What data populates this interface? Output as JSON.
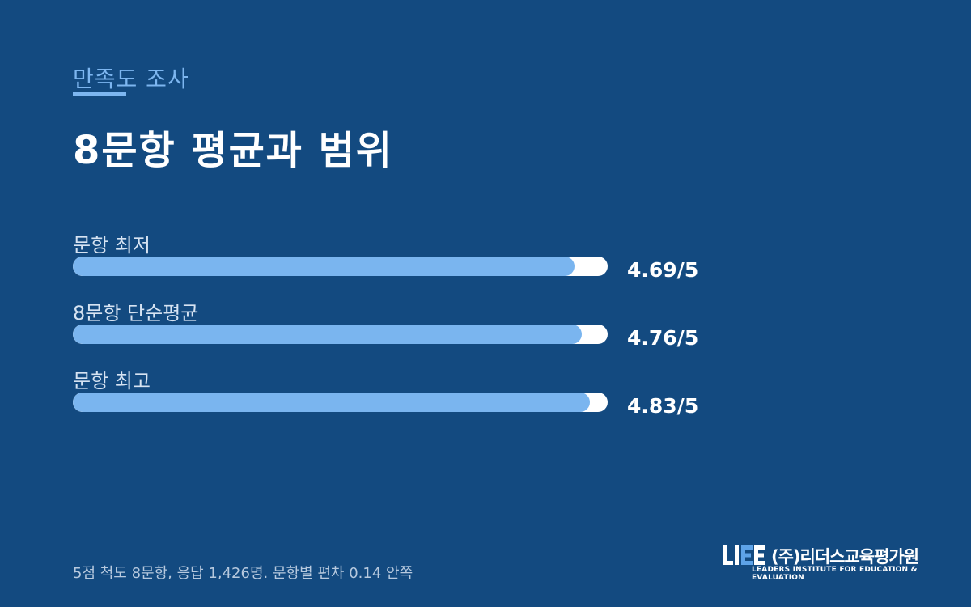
{
  "header": {
    "subtitle": "만족도 조사",
    "title": "8문항 평균과 범위"
  },
  "chart_data": {
    "type": "bar",
    "orientation": "horizontal",
    "categories": [
      "문항 최저",
      "8문항 단순평균",
      "문항 최고"
    ],
    "values": [
      4.69,
      4.76,
      4.83
    ],
    "value_labels": [
      "4.69/5",
      "4.76/5",
      "4.83/5"
    ],
    "xlim": [
      0,
      5
    ],
    "bar_color": "#7ab5ef",
    "track_color": "#ffffff"
  },
  "footnote": "5점 척도 8문항, 응답 1,426명. 문항별 편차 0.14 안쪽",
  "logo": {
    "korean": "(주)리더스교육평가원",
    "english": "LEADERS INSTITUTE FOR EDUCATION & EVALUATION"
  },
  "colors": {
    "background": "#134a80",
    "accent": "#7db6f0"
  }
}
